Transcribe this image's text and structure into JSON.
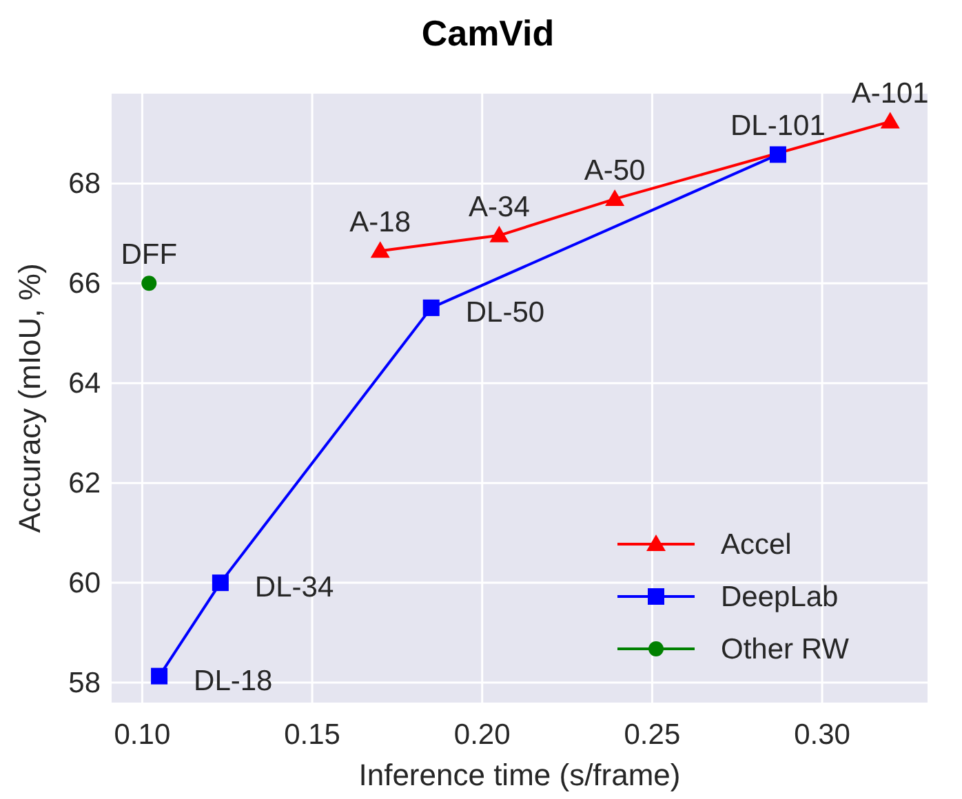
{
  "chart_data": {
    "type": "line",
    "title": "CamVid",
    "xlabel": "Inference time (s/frame)",
    "ylabel": "Accuracy (mIoU, %)",
    "xlim": [
      0.091,
      0.331
    ],
    "xticks": [
      {
        "value": 0.1,
        "label": "0.10"
      },
      0.15,
      {
        "value": 0.2,
        "label": "0.20"
      },
      0.25,
      {
        "value": 0.3,
        "label": "0.30"
      }
    ],
    "ylim": [
      57.6,
      69.8
    ],
    "yticks": [
      58,
      60,
      62,
      64,
      66,
      68
    ],
    "grid": true,
    "legend": "bottom right",
    "series": [
      {
        "name": "Accel",
        "color": "#ff0000",
        "marker": "triangle",
        "x": [
          0.17,
          0.205,
          0.239,
          0.32
        ],
        "values": [
          66.65,
          66.96,
          67.69,
          69.24
        ]
      },
      {
        "name": "DeepLab",
        "color": "#0000ff",
        "marker": "square",
        "x": [
          0.105,
          0.123,
          0.185,
          0.287
        ],
        "values": [
          58.13,
          60.0,
          65.51,
          68.58
        ]
      },
      {
        "name": "Other RW",
        "color": "#008000",
        "marker": "circle",
        "x": [
          0.102
        ],
        "values": [
          66.0
        ]
      }
    ],
    "annotations": [
      {
        "text": "A-18",
        "x": 0.17,
        "y": 66.65
      },
      {
        "text": "A-34",
        "x": 0.205,
        "y": 66.96
      },
      {
        "text": "A-50",
        "x": 0.239,
        "y": 67.69
      },
      {
        "text": "A-101",
        "x": 0.32,
        "y": 69.24
      },
      {
        "text": "DL-18",
        "x": 0.105,
        "y": 58.13
      },
      {
        "text": "DL-34",
        "x": 0.123,
        "y": 60.0
      },
      {
        "text": "DL-50",
        "x": 0.185,
        "y": 65.51
      },
      {
        "text": "DL-101",
        "x": 0.287,
        "y": 68.58
      },
      {
        "text": "DFF",
        "x": 0.102,
        "y": 66.0
      }
    ]
  }
}
